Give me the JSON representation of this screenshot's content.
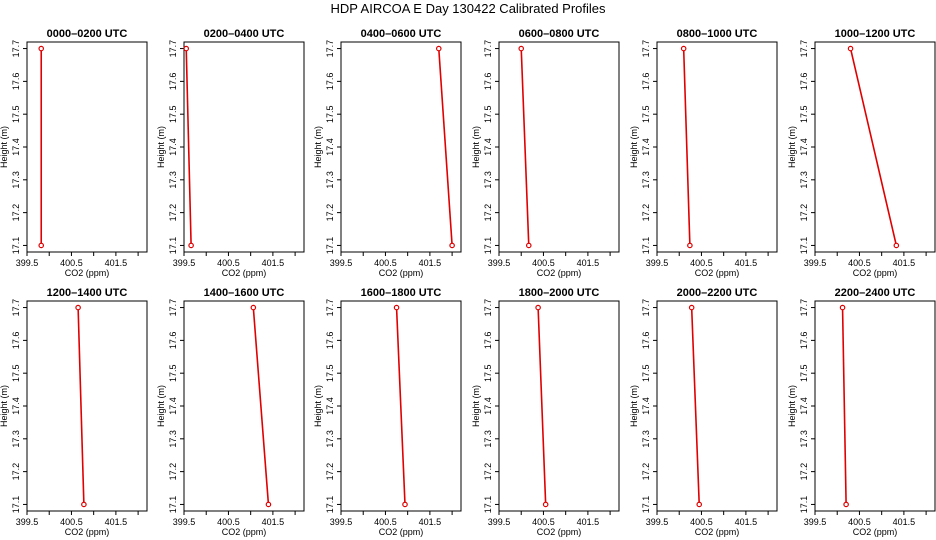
{
  "title": "HDP AIRCOA E  Day 130422  Calibrated Profiles",
  "chart_data": {
    "type": "line",
    "title": "HDP AIRCOA E  Day 130422  Calibrated Profiles",
    "xlabel": "CO2 (ppm)",
    "ylabel": "Height (m)",
    "xlim": [
      399.5,
      402.2
    ],
    "ylim": [
      17.08,
      17.72
    ],
    "x_ticks": [
      399.5,
      400.5,
      401.5
    ],
    "x_tick_labels": [
      "399.5",
      "400.5",
      "401.5"
    ],
    "x_minor_ticks": [
      400,
      401,
      402
    ],
    "y_ticks": [
      17.1,
      17.2,
      17.3,
      17.4,
      17.5,
      17.6,
      17.7
    ],
    "y_tick_labels": [
      "17.1",
      "17.2",
      "17.3",
      "17.4",
      "17.5",
      "17.6",
      "17.7"
    ],
    "line_color": "#e00000",
    "grid": false,
    "panels": [
      {
        "title": "0000–0200 UTC",
        "points": [
          {
            "x": 399.82,
            "y": 17.7
          },
          {
            "x": 399.82,
            "y": 17.1
          }
        ]
      },
      {
        "title": "0200–0400 UTC",
        "points": [
          {
            "x": 399.55,
            "y": 17.7
          },
          {
            "x": 399.66,
            "y": 17.1
          }
        ]
      },
      {
        "title": "0400–0600 UTC",
        "points": [
          {
            "x": 401.7,
            "y": 17.7
          },
          {
            "x": 402.0,
            "y": 17.1
          }
        ]
      },
      {
        "title": "0600–0800 UTC",
        "points": [
          {
            "x": 400.0,
            "y": 17.7
          },
          {
            "x": 400.17,
            "y": 17.1
          }
        ]
      },
      {
        "title": "0800–1000 UTC",
        "points": [
          {
            "x": 400.1,
            "y": 17.7
          },
          {
            "x": 400.24,
            "y": 17.1
          }
        ]
      },
      {
        "title": "1000–1200 UTC",
        "points": [
          {
            "x": 400.3,
            "y": 17.7
          },
          {
            "x": 401.33,
            "y": 17.1
          }
        ]
      },
      {
        "title": "1200–1400 UTC",
        "points": [
          {
            "x": 400.65,
            "y": 17.7
          },
          {
            "x": 400.78,
            "y": 17.1
          }
        ]
      },
      {
        "title": "1400–1600 UTC",
        "points": [
          {
            "x": 401.06,
            "y": 17.7
          },
          {
            "x": 401.4,
            "y": 17.1
          }
        ]
      },
      {
        "title": "1600–1800 UTC",
        "points": [
          {
            "x": 400.75,
            "y": 17.7
          },
          {
            "x": 400.94,
            "y": 17.1
          }
        ]
      },
      {
        "title": "1800–2000 UTC",
        "points": [
          {
            "x": 400.38,
            "y": 17.7
          },
          {
            "x": 400.55,
            "y": 17.1
          }
        ]
      },
      {
        "title": "2000–2200 UTC",
        "points": [
          {
            "x": 400.28,
            "y": 17.7
          },
          {
            "x": 400.45,
            "y": 17.1
          }
        ]
      },
      {
        "title": "2200–2400 UTC",
        "points": [
          {
            "x": 400.12,
            "y": 17.7
          },
          {
            "x": 400.2,
            "y": 17.1
          }
        ]
      }
    ]
  }
}
